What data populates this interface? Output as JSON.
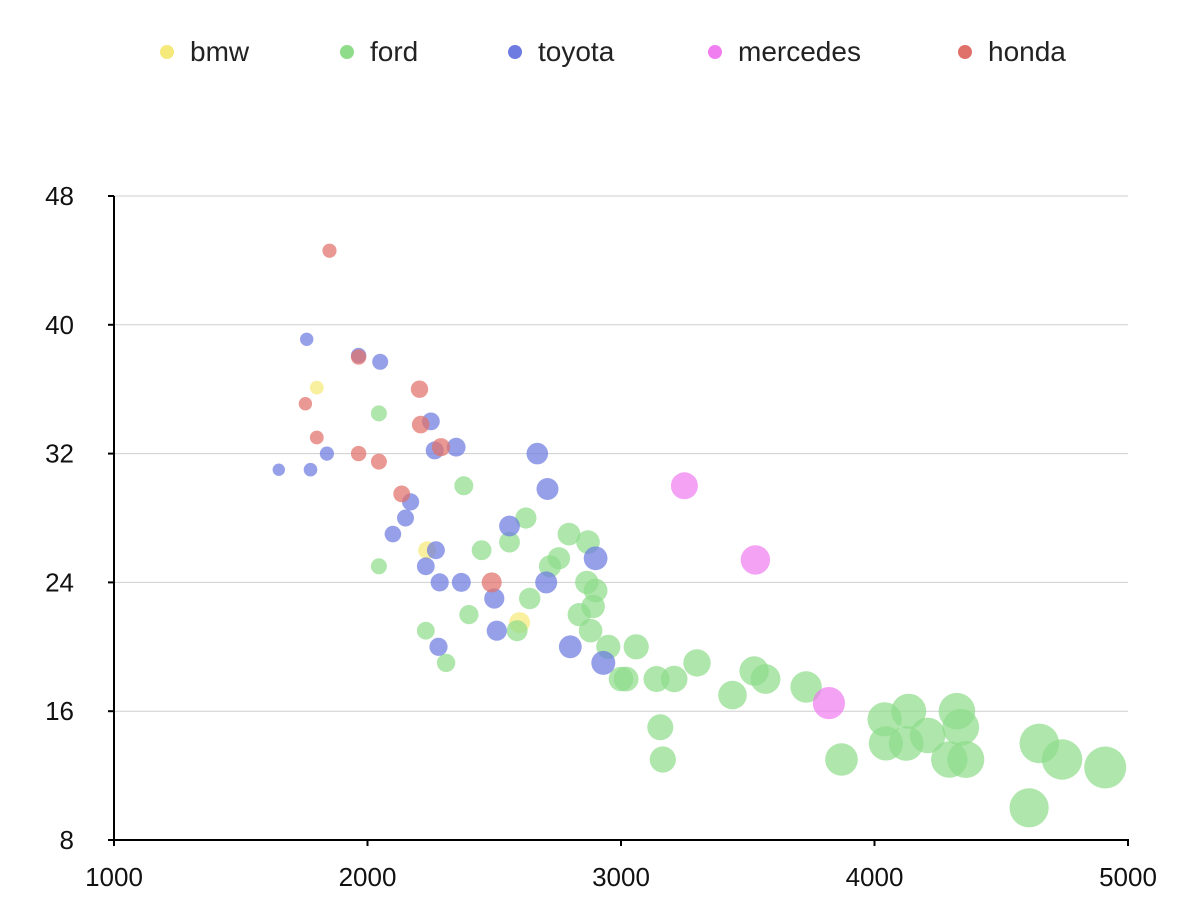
{
  "chart_data": {
    "type": "scatter",
    "title": "",
    "xlabel": "",
    "ylabel": "",
    "xlim": [
      1000,
      5000
    ],
    "ylim": [
      8,
      48
    ],
    "xticks": [
      1000,
      2000,
      3000,
      4000,
      5000
    ],
    "yticks": [
      8,
      16,
      24,
      32,
      40,
      48
    ],
    "grid": "horizontal",
    "legend_position": "top",
    "size_encoding": "marker size increases with x (weight)",
    "series": [
      {
        "name": "bmw",
        "color": "#f5e97a",
        "points": [
          [
            1800,
            36.1
          ],
          [
            2235,
            26
          ],
          [
            2600,
            21.5
          ]
        ]
      },
      {
        "name": "ford",
        "color": "#8fdc8a",
        "points": [
          [
            2045,
            25
          ],
          [
            2045,
            34.5
          ],
          [
            2230,
            21
          ],
          [
            2310,
            19
          ],
          [
            2380,
            30
          ],
          [
            2400,
            22
          ],
          [
            2450,
            26
          ],
          [
            2560,
            26.5
          ],
          [
            2590,
            21
          ],
          [
            2625,
            28
          ],
          [
            2640,
            23
          ],
          [
            2720,
            25
          ],
          [
            2755,
            25.5
          ],
          [
            2795,
            27
          ],
          [
            2835,
            22
          ],
          [
            2865,
            24
          ],
          [
            2870,
            26.5
          ],
          [
            2880,
            21
          ],
          [
            2890,
            22.5
          ],
          [
            2900,
            23.5
          ],
          [
            2950,
            20
          ],
          [
            3000,
            18
          ],
          [
            3020,
            18
          ],
          [
            3060,
            20
          ],
          [
            3140,
            18
          ],
          [
            3155,
            15
          ],
          [
            3165,
            13
          ],
          [
            3210,
            18
          ],
          [
            3300,
            19
          ],
          [
            3440,
            17
          ],
          [
            3525,
            18.5
          ],
          [
            3570,
            18
          ],
          [
            3730,
            17.5
          ],
          [
            3870,
            13
          ],
          [
            4040,
            15.5
          ],
          [
            4045,
            14
          ],
          [
            4125,
            14
          ],
          [
            4135,
            16
          ],
          [
            4210,
            14.5
          ],
          [
            4295,
            13
          ],
          [
            4325,
            16
          ],
          [
            4340,
            15
          ],
          [
            4360,
            13
          ],
          [
            4610,
            10
          ],
          [
            4650,
            14
          ],
          [
            4740,
            13
          ],
          [
            4910,
            12.5
          ]
        ]
      },
      {
        "name": "toyota",
        "color": "#6e7be0",
        "points": [
          [
            1650,
            31
          ],
          [
            1760,
            39.1
          ],
          [
            1775,
            31
          ],
          [
            1840,
            32
          ],
          [
            1965,
            38.1
          ],
          [
            2050,
            37.7
          ],
          [
            2100,
            27
          ],
          [
            2150,
            28
          ],
          [
            2170,
            29
          ],
          [
            2230,
            25
          ],
          [
            2250,
            34
          ],
          [
            2265,
            32.2
          ],
          [
            2270,
            26
          ],
          [
            2280,
            20
          ],
          [
            2285,
            24
          ],
          [
            2350,
            32.4
          ],
          [
            2370,
            24
          ],
          [
            2500,
            23
          ],
          [
            2510,
            21
          ],
          [
            2560,
            27.5
          ],
          [
            2670,
            32
          ],
          [
            2705,
            24
          ],
          [
            2710,
            29.8
          ],
          [
            2800,
            20
          ],
          [
            2900,
            25.5
          ],
          [
            2930,
            19
          ]
        ]
      },
      {
        "name": "mercedes",
        "color": "#f07ef0",
        "points": [
          [
            3250,
            30
          ],
          [
            3530,
            25.4
          ],
          [
            3820,
            16.5
          ]
        ]
      },
      {
        "name": "honda",
        "color": "#e0706a",
        "points": [
          [
            1755,
            35.1
          ],
          [
            1800,
            33
          ],
          [
            1850,
            44.6
          ],
          [
            1965,
            32
          ],
          [
            1965,
            38
          ],
          [
            2045,
            31.5
          ],
          [
            2135,
            29.5
          ],
          [
            2205,
            36
          ],
          [
            2210,
            33.8
          ],
          [
            2290,
            32.4
          ],
          [
            2490,
            24
          ]
        ]
      }
    ]
  }
}
